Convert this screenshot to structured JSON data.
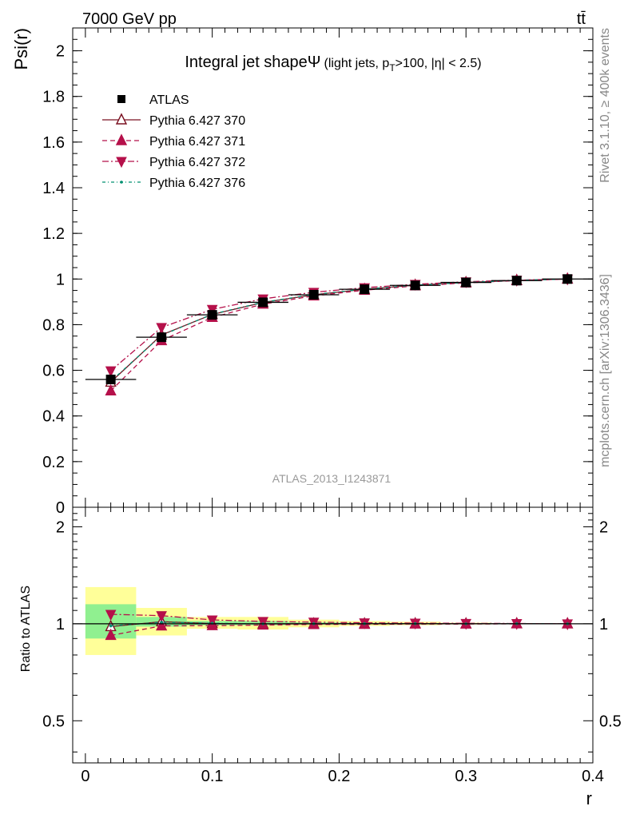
{
  "header": {
    "left": "7000 GeV pp",
    "right": "tt̄"
  },
  "side": {
    "rivet": "Rivet 3.1.10, ≥ 400k events",
    "source": "mcplots.cern.ch [arXiv:1306.3436]"
  },
  "chart_data": [
    {
      "type": "line",
      "title": "Integral jet shape",
      "title_symbol": "Ψ",
      "subtitle_parts": [
        "(light jets, p",
        "T",
        ">100, |η| < 2.5)"
      ],
      "ylabel": "Psi(r)",
      "xlabel": "r",
      "xlim": [
        -0.01,
        0.4
      ],
      "ylim": [
        0,
        2.1
      ],
      "yticks": [
        0,
        0.2,
        0.4,
        0.6,
        0.8,
        1,
        1.2,
        1.4,
        1.6,
        1.8,
        2
      ],
      "ytick_labels": [
        "0",
        "0.2",
        "0.4",
        "0.6",
        "0.8",
        "1",
        "1.2",
        "1.4",
        "1.6",
        "1.8",
        "2"
      ],
      "watermark": "ATLAS_2013_I1243871",
      "x": [
        0.02,
        0.06,
        0.1,
        0.14,
        0.18,
        0.22,
        0.26,
        0.3,
        0.34,
        0.38
      ],
      "xerr": 0.02,
      "series": [
        {
          "name": "ATLAS",
          "marker": "square",
          "color": "#000000",
          "dash": "",
          "values": [
            0.56,
            0.745,
            0.843,
            0.898,
            0.931,
            0.955,
            0.972,
            0.985,
            0.993,
            1.0
          ]
        },
        {
          "name": "Pythia 6.427 370",
          "marker": "triangle-open",
          "color": "#7a1020",
          "dash": "",
          "values": [
            0.548,
            0.755,
            0.845,
            0.897,
            0.931,
            0.955,
            0.973,
            0.985,
            0.994,
            1.0
          ]
        },
        {
          "name": "Pythia 6.427 371",
          "marker": "triangle",
          "color": "#b5104a",
          "dash": "6,4",
          "values": [
            0.51,
            0.73,
            0.832,
            0.89,
            0.926,
            0.951,
            0.97,
            0.983,
            0.993,
            1.0
          ]
        },
        {
          "name": "Pythia 6.427 372",
          "marker": "triangle-down",
          "color": "#b5104a",
          "dash": "8,3,2,3",
          "values": [
            0.598,
            0.788,
            0.867,
            0.913,
            0.942,
            0.962,
            0.977,
            0.988,
            0.995,
            1.0
          ]
        },
        {
          "name": "Pythia 6.427 376",
          "marker": "dot",
          "color": "#009070",
          "dash": "4,3,1,3",
          "values": [
            0.552,
            0.753,
            0.846,
            0.898,
            0.932,
            0.956,
            0.973,
            0.985,
            0.994,
            1.0
          ]
        }
      ]
    },
    {
      "type": "line",
      "ylabel": "Ratio to ATLAS",
      "xlabel": "r",
      "xlim": [
        -0.01,
        0.4
      ],
      "ylim": [
        0.37,
        2.3
      ],
      "yticks": [
        0.5,
        1,
        2
      ],
      "ytick_labels": [
        "0.5",
        "1",
        "2"
      ],
      "xticks": [
        0,
        0.1,
        0.2,
        0.3,
        0.4
      ],
      "xtick_labels": [
        "0",
        "0.1",
        "0.2",
        "0.3",
        "0.4"
      ],
      "x": [
        0.02,
        0.06,
        0.1,
        0.14,
        0.18,
        0.22,
        0.26,
        0.3,
        0.34,
        0.38
      ],
      "xerr": 0.02,
      "bands": {
        "stat_lo": [
          0.9,
          0.98,
          0.99,
          0.99,
          0.995,
          0.997,
          0.998,
          0.999,
          0.999,
          1.0
        ],
        "stat_hi": [
          1.15,
          1.05,
          1.02,
          1.02,
          1.01,
          1.007,
          1.005,
          1.003,
          1.002,
          1.0
        ],
        "total_lo": [
          0.8,
          0.92,
          0.965,
          0.96,
          0.975,
          0.985,
          0.99,
          0.995,
          0.998,
          1.0
        ],
        "total_hi": [
          1.3,
          1.12,
          1.05,
          1.05,
          1.03,
          1.02,
          1.015,
          1.008,
          1.004,
          1.0
        ]
      },
      "series": [
        {
          "name": "ATLAS",
          "marker": "none",
          "color": "#000000",
          "dash": "",
          "values": [
            1.0,
            1.0,
            1.0,
            1.0,
            1.0,
            1.0,
            1.0,
            1.0,
            1.0,
            1.0
          ]
        },
        {
          "name": "Pythia 6.427 370",
          "marker": "triangle-open",
          "color": "#7a1020",
          "dash": "",
          "values": [
            0.98,
            1.015,
            1.002,
            0.999,
            1.0,
            1.0,
            1.001,
            1.0,
            1.001,
            1.0
          ]
        },
        {
          "name": "Pythia 6.427 371",
          "marker": "triangle",
          "color": "#b5104a",
          "dash": "6,4",
          "values": [
            0.92,
            0.985,
            0.987,
            0.991,
            0.995,
            0.996,
            0.998,
            0.998,
            1.0,
            1.0
          ]
        },
        {
          "name": "Pythia 6.427 372",
          "marker": "triangle-down",
          "color": "#b5104a",
          "dash": "8,3,2,3",
          "values": [
            1.07,
            1.06,
            1.028,
            1.017,
            1.012,
            1.007,
            1.005,
            1.003,
            1.002,
            1.0
          ]
        },
        {
          "name": "Pythia 6.427 376",
          "marker": "dot",
          "color": "#009070",
          "dash": "4,3,1,3",
          "values": [
            0.985,
            1.011,
            1.004,
            1.0,
            1.001,
            1.001,
            1.001,
            1.0,
            1.001,
            1.0
          ]
        }
      ]
    }
  ],
  "colors": {
    "stat_band": "#90f090",
    "total_band": "#ffff99",
    "watermark": "#999999",
    "side_text": "#888888"
  }
}
